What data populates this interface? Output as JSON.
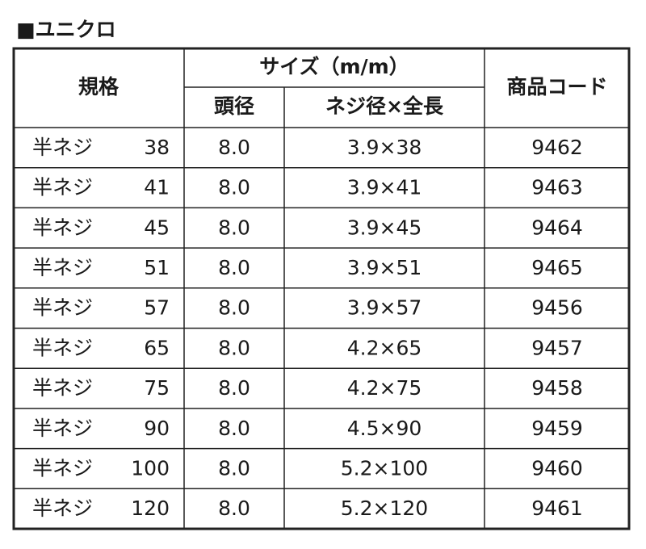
{
  "title": "■ユニクロ",
  "table": {
    "header": {
      "spec": "規格",
      "size": "サイズ（m/m）",
      "head": "頭径",
      "thread": "ネジ径×全長",
      "code": "商品コード"
    },
    "rows": [
      [
        "半ネジ",
        "38",
        "8.0",
        "3.9×38",
        "9462"
      ],
      [
        "半ネジ",
        "41",
        "8.0",
        "3.9×41",
        "9463"
      ],
      [
        "半ネジ",
        "45",
        "8.0",
        "3.9×45",
        "9464"
      ],
      [
        "半ネジ",
        "51",
        "8.0",
        "3.9×51",
        "9465"
      ],
      [
        "半ネジ",
        "57",
        "8.0",
        "3.9×57",
        "9456"
      ],
      [
        "半ネジ",
        "65",
        "8.0",
        "4.2×65",
        "9457"
      ],
      [
        "半ネジ",
        "75",
        "8.0",
        "4.2×75",
        "9458"
      ],
      [
        "半ネジ",
        "90",
        "8.0",
        "4.5×90",
        "9459"
      ],
      [
        "半ネジ",
        "100",
        "8.0",
        "5.2×100",
        "9460"
      ],
      [
        "半ネジ",
        "120",
        "8.0",
        "5.2×120",
        "9461"
      ]
    ]
  }
}
